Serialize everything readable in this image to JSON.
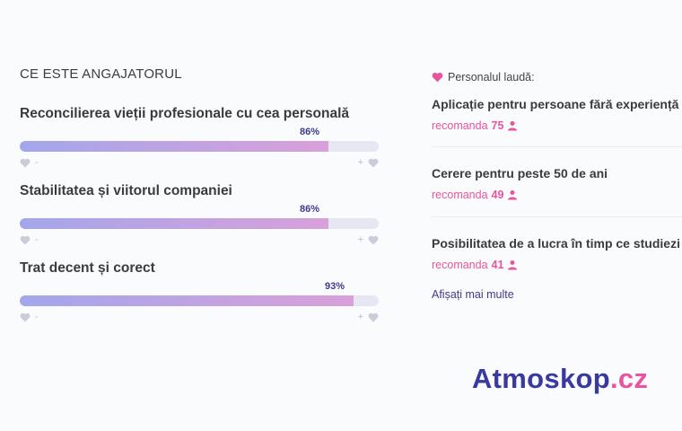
{
  "section_title": "CE ESTE ANGAJATORUL",
  "metrics": [
    {
      "label": "Reconcilierea vieții profesionale cu cea personală",
      "percent_label": "86%",
      "value": 86
    },
    {
      "label": "Stabilitatea și viitorul companiei",
      "percent_label": "86%",
      "value": 86
    },
    {
      "label": "Trat decent și corect",
      "percent_label": "93%",
      "value": 93
    }
  ],
  "scale": {
    "minus": "-",
    "plus": "+"
  },
  "praise": {
    "heading": "Personalul laudă:",
    "items": [
      {
        "title": "Aplicație pentru persoane fără experiență",
        "recommend_label": "recomanda",
        "count": "75"
      },
      {
        "title": "Cerere pentru peste 50 de ani",
        "recommend_label": "recomanda",
        "count": "49"
      },
      {
        "title": "Posibilitatea de a lucra în timp ce studiezi",
        "recommend_label": "recomanda",
        "count": "41"
      }
    ],
    "show_more": "Afișați mai multe"
  },
  "logo": {
    "brand": "Atmoskop",
    "tld": ".cz"
  },
  "colors": {
    "accent": "#3e3a8c",
    "pink": "#e8559e",
    "track": "#e6e7f3"
  },
  "icons": {
    "heart": "heart-icon",
    "person": "person-icon"
  }
}
